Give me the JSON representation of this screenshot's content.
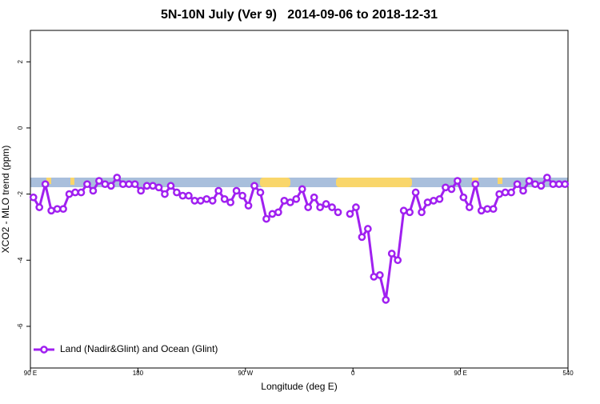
{
  "chart_data": {
    "type": "line",
    "title": "5N-10N July (Ver 9)   2014-09-06 to 2018-12-31",
    "x_label": "Longitude (deg E)",
    "y_label": "XCO2 - MLO trend (ppm)",
    "x": [
      92.5,
      97.5,
      102.5,
      107.5,
      112.5,
      117.5,
      122.5,
      127.5,
      132.5,
      137.5,
      142.5,
      147.5,
      152.5,
      157.5,
      162.5,
      167.5,
      172.5,
      177.5,
      182.5,
      187.5,
      192.5,
      197.5,
      202.5,
      207.5,
      212.5,
      217.5,
      222.5,
      227.5,
      232.5,
      237.5,
      242.5,
      247.5,
      252.5,
      257.5,
      262.5,
      267.5,
      272.5,
      277.5,
      282.5,
      287.5,
      292.5,
      297.5,
      302.5,
      307.5,
      312.5,
      317.5,
      322.5,
      327.5,
      332.5,
      337.5,
      342.5,
      347.5,
      352.5,
      357.5,
      362.5,
      367.5,
      372.5,
      377.5,
      382.5,
      387.5,
      392.5,
      397.5,
      402.5,
      407.5,
      412.5,
      417.5,
      422.5,
      427.5,
      432.5,
      437.5,
      442.5,
      447.5,
      452.5,
      457.5,
      462.5,
      467.5,
      472.5,
      477.5,
      482.5,
      487.5,
      492.5,
      497.5,
      502.5,
      507.5,
      512.5,
      517.5,
      522.5,
      527.5,
      532.5,
      537.5
    ],
    "series": [
      {
        "name": "Land (Nadir&Glint) and Ocean (Glint)",
        "color": "#a020f0",
        "values": [
          -2.1,
          -2.4,
          -1.7,
          -2.5,
          -2.45,
          -2.45,
          -2.0,
          -1.95,
          -1.95,
          -1.7,
          -1.9,
          -1.6,
          -1.7,
          -1.75,
          -1.5,
          -1.7,
          -1.7,
          -1.7,
          -1.9,
          -1.75,
          -1.75,
          -1.8,
          -2.0,
          -1.75,
          -1.95,
          -2.05,
          -2.05,
          -2.2,
          -2.2,
          -2.15,
          -2.2,
          -1.9,
          -2.15,
          -2.25,
          -1.9,
          -2.05,
          -2.35,
          -1.75,
          -1.95,
          -2.75,
          -2.6,
          -2.55,
          -2.2,
          -2.25,
          -2.15,
          -1.85,
          -2.4,
          -2.1,
          -2.4,
          -2.3,
          -2.4,
          -2.55,
          null,
          -2.6,
          -2.4,
          -3.3,
          -3.05,
          -4.5,
          -4.45,
          -5.2,
          -3.8,
          -4.0,
          -2.5,
          -2.55,
          -1.95,
          -2.55,
          -2.25,
          -2.2,
          -2.15,
          -1.8,
          -1.85,
          -1.6,
          -2.1,
          -2.4,
          -1.7,
          -2.5,
          -2.45,
          -2.45,
          -2.0,
          -1.95,
          -1.95,
          -1.7,
          -1.9,
          -1.6,
          -1.7,
          -1.75,
          -1.5,
          -1.7,
          -1.7,
          -1.7
        ]
      }
    ],
    "xlim": [
      90,
      540
    ],
    "xticks": [
      {
        "value": 90,
        "label": "90 E"
      },
      180,
      {
        "value": 270,
        "label": "90 W"
      },
      {
        "value": 360,
        "label": "0"
      },
      {
        "value": 450,
        "label": "90 E"
      },
      540
    ],
    "ylim": [
      -7.26,
      2.95
    ],
    "yticks": [
      -6,
      -4,
      -2,
      0,
      2
    ],
    "legend": "bottom-left"
  }
}
